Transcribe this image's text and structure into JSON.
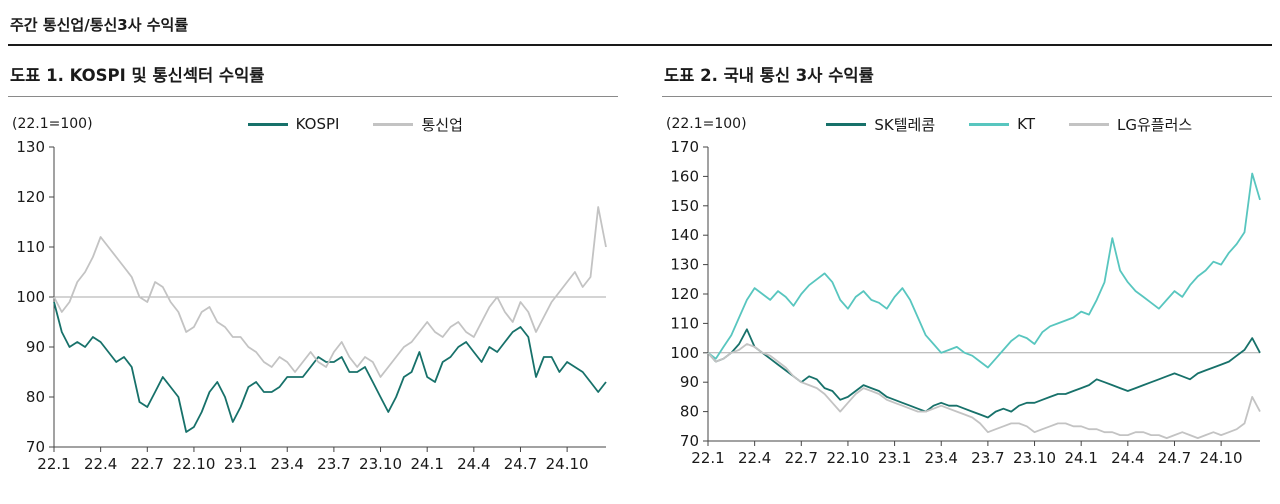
{
  "page": {
    "header": "주간 통신업/통신3사 수익률"
  },
  "chart_data": [
    {
      "type": "line",
      "title": "도표 1. KOSPI 및 통신섹터 수익률",
      "axis_note": "(22.1=100)",
      "ylim": [
        70,
        130
      ],
      "yticks": [
        70,
        80,
        90,
        100,
        110,
        120,
        130
      ],
      "ref_line": 100,
      "grid": "off",
      "legend_position": "top-center",
      "xtick_labels": [
        "22.1",
        "22.4",
        "22.7",
        "22.10",
        "23.1",
        "23.4",
        "23.7",
        "23.10",
        "24.1",
        "24.4",
        "24.7",
        "24.10"
      ],
      "xtick_step": 6,
      "series": [
        {
          "name": "KOSPI",
          "color": "#17716a",
          "values": [
            99,
            93,
            90,
            91,
            90,
            92,
            91,
            89,
            87,
            88,
            86,
            79,
            78,
            81,
            84,
            82,
            80,
            73,
            74,
            77,
            81,
            83,
            80,
            75,
            78,
            82,
            83,
            81,
            81,
            82,
            84,
            84,
            84,
            86,
            88,
            87,
            87,
            88,
            85,
            85,
            86,
            83,
            80,
            77,
            80,
            84,
            85,
            89,
            84,
            83,
            87,
            88,
            90,
            91,
            89,
            87,
            90,
            89,
            91,
            93,
            94,
            92,
            84,
            88,
            88,
            85,
            87,
            86,
            85,
            83,
            81,
            83
          ]
        },
        {
          "name": "통신업",
          "color": "#c3c3c3",
          "values": [
            100,
            97,
            99,
            103,
            105,
            108,
            112,
            110,
            108,
            106,
            104,
            100,
            99,
            103,
            102,
            99,
            97,
            93,
            94,
            97,
            98,
            95,
            94,
            92,
            92,
            90,
            89,
            87,
            86,
            88,
            87,
            85,
            87,
            89,
            87,
            86,
            89,
            91,
            88,
            86,
            88,
            87,
            84,
            86,
            88,
            90,
            91,
            93,
            95,
            93,
            92,
            94,
            95,
            93,
            92,
            95,
            98,
            100,
            97,
            95,
            99,
            97,
            93,
            96,
            99,
            101,
            103,
            105,
            102,
            104,
            118,
            110
          ]
        }
      ]
    },
    {
      "type": "line",
      "title": "도표 2. 국내 통신 3사 수익률",
      "axis_note": "(22.1=100)",
      "ylim": [
        70,
        170
      ],
      "yticks": [
        70,
        80,
        90,
        100,
        110,
        120,
        130,
        140,
        150,
        160,
        170
      ],
      "ref_line": 100,
      "grid": "off",
      "legend_position": "top-center",
      "xtick_labels": [
        "22.1",
        "22.4",
        "22.7",
        "22.10",
        "23.1",
        "23.4",
        "23.7",
        "23.10",
        "24.1",
        "24.4",
        "24.7",
        "24.10"
      ],
      "xtick_step": 6,
      "series": [
        {
          "name": "SK텔레콤",
          "color": "#17716a",
          "values": [
            100,
            97,
            98,
            100,
            103,
            108,
            102,
            100,
            98,
            96,
            94,
            92,
            90,
            92,
            91,
            88,
            87,
            84,
            85,
            87,
            89,
            88,
            87,
            85,
            84,
            83,
            82,
            81,
            80,
            82,
            83,
            82,
            82,
            81,
            80,
            79,
            78,
            80,
            81,
            80,
            82,
            83,
            83,
            84,
            85,
            86,
            86,
            87,
            88,
            89,
            91,
            90,
            89,
            88,
            87,
            88,
            89,
            90,
            91,
            92,
            93,
            92,
            91,
            93,
            94,
            95,
            96,
            97,
            99,
            101,
            105,
            100
          ]
        },
        {
          "name": "KT",
          "color": "#58c6bf",
          "values": [
            100,
            98,
            102,
            106,
            112,
            118,
            122,
            120,
            118,
            121,
            119,
            116,
            120,
            123,
            125,
            127,
            124,
            118,
            115,
            119,
            121,
            118,
            117,
            115,
            119,
            122,
            118,
            112,
            106,
            103,
            100,
            101,
            102,
            100,
            99,
            97,
            95,
            98,
            101,
            104,
            106,
            105,
            103,
            107,
            109,
            110,
            111,
            112,
            114,
            113,
            118,
            124,
            139,
            128,
            124,
            121,
            119,
            117,
            115,
            118,
            121,
            119,
            123,
            126,
            128,
            131,
            130,
            134,
            137,
            141,
            161,
            152
          ]
        },
        {
          "name": "LG유플러스",
          "color": "#c3c3c3",
          "values": [
            100,
            97,
            98,
            100,
            101,
            103,
            102,
            100,
            99,
            97,
            95,
            92,
            90,
            89,
            88,
            86,
            83,
            80,
            83,
            86,
            88,
            87,
            86,
            84,
            83,
            82,
            81,
            80,
            80,
            81,
            82,
            81,
            80,
            79,
            78,
            76,
            73,
            74,
            75,
            76,
            76,
            75,
            73,
            74,
            75,
            76,
            76,
            75,
            75,
            74,
            74,
            73,
            73,
            72,
            72,
            73,
            73,
            72,
            72,
            71,
            72,
            73,
            72,
            71,
            72,
            73,
            72,
            73,
            74,
            76,
            85,
            80
          ]
        }
      ]
    }
  ],
  "colors": {
    "dark_teal": "#17716a",
    "light_teal": "#58c6bf",
    "gray_series": "#c3c3c3",
    "reference_line": "#aaaaaa",
    "axis": "#444444"
  }
}
